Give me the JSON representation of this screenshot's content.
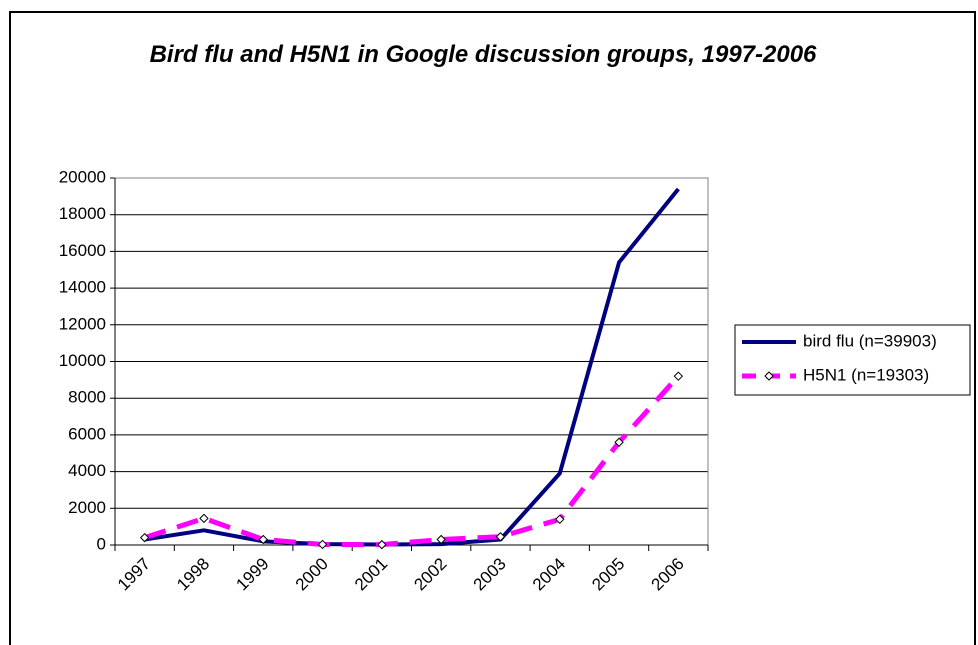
{
  "chart_data": {
    "type": "line",
    "title": "Bird flu and H5N1 in Google discussion groups, 1997-2006",
    "categories": [
      "1997",
      "1998",
      "1999",
      "2000",
      "2001",
      "2002",
      "2003",
      "2004",
      "2005",
      "2006"
    ],
    "series": [
      {
        "name": "bird flu (n=39903)",
        "color": "#000080",
        "dash": "solid",
        "values": [
          300,
          800,
          200,
          50,
          30,
          50,
          300,
          3900,
          15400,
          19400
        ]
      },
      {
        "name": "H5N1 (n=19303)",
        "color": "#ff00ff",
        "dash": "dashed",
        "marker": "diamond",
        "values": [
          400,
          1450,
          300,
          30,
          20,
          300,
          450,
          1400,
          5600,
          9200
        ]
      }
    ],
    "ylim": [
      0,
      20000
    ],
    "yticks": [
      0,
      2000,
      4000,
      6000,
      8000,
      10000,
      12000,
      14000,
      16000,
      18000,
      20000
    ],
    "grid": true,
    "legend": "right"
  }
}
